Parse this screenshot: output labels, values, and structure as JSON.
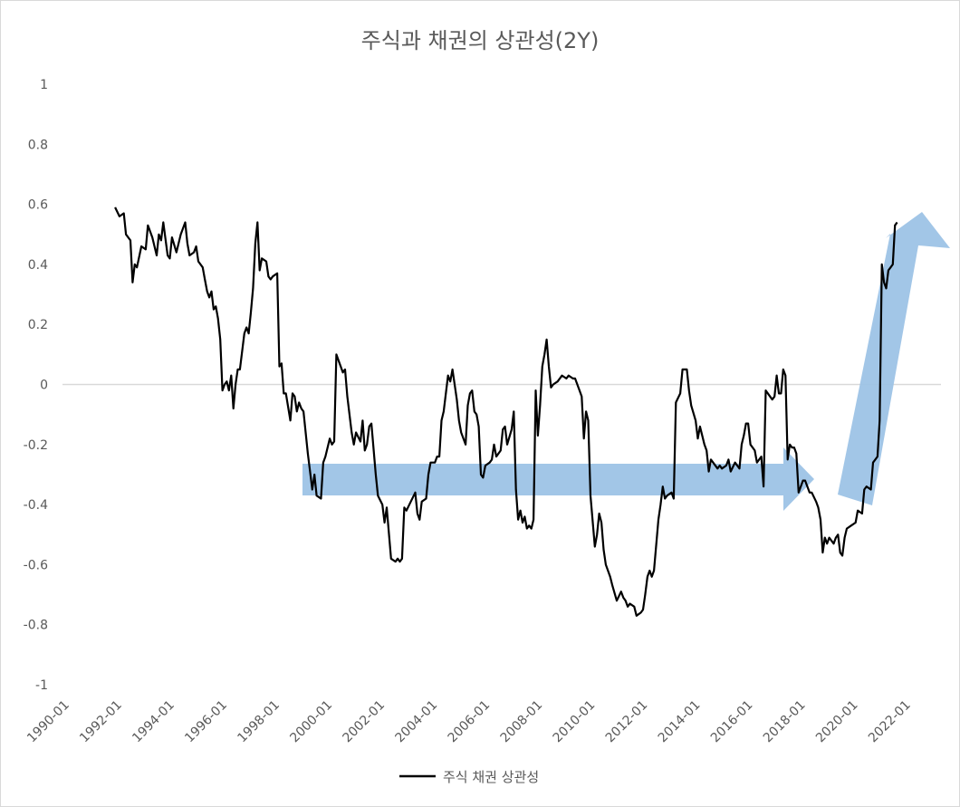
{
  "chart_data": {
    "type": "line",
    "title": "주식과 채권의 상관성(2Y)",
    "xlabel": "",
    "ylabel": "",
    "ylim": [
      -1,
      1
    ],
    "yticks": [
      "1",
      "0.8",
      "0.6",
      "0.4",
      "0.2",
      "0",
      "-0.2",
      "-0.4",
      "-0.6",
      "-0.8",
      "-1"
    ],
    "xticks": [
      "1990-01",
      "1992-01",
      "1994-01",
      "1996-01",
      "1998-01",
      "2000-01",
      "2002-01",
      "2004-01",
      "2006-01",
      "2008-01",
      "2010-01",
      "2012-01",
      "2014-01",
      "2016-01",
      "2018-01",
      "2020-01",
      "2022-01"
    ],
    "xlim": [
      "1990-01",
      "2023-06"
    ],
    "grid": false,
    "zero_line": true,
    "legend": "bottom",
    "colors": {
      "series": "#000000",
      "arrow": "#9dc3e6",
      "zero_line": "#d9d9d9",
      "text": "#595959"
    },
    "series": [
      {
        "name": "주식 채권 상관성",
        "points": [
          [
            "1992-01",
            0.59
          ],
          [
            "1992-03",
            0.56
          ],
          [
            "1992-05",
            0.57
          ],
          [
            "1992-06",
            0.5
          ],
          [
            "1992-08",
            0.48
          ],
          [
            "1992-09",
            0.34
          ],
          [
            "1992-10",
            0.4
          ],
          [
            "1992-11",
            0.39
          ],
          [
            "1993-01",
            0.46
          ],
          [
            "1993-03",
            0.45
          ],
          [
            "1993-04",
            0.53
          ],
          [
            "1993-06",
            0.49
          ],
          [
            "1993-08",
            0.43
          ],
          [
            "1993-09",
            0.5
          ],
          [
            "1993-10",
            0.48
          ],
          [
            "1993-11",
            0.54
          ],
          [
            "1994-01",
            0.43
          ],
          [
            "1994-02",
            0.42
          ],
          [
            "1994-03",
            0.49
          ],
          [
            "1994-05",
            0.44
          ],
          [
            "1994-07",
            0.5
          ],
          [
            "1994-09",
            0.54
          ],
          [
            "1994-10",
            0.47
          ],
          [
            "1994-11",
            0.43
          ],
          [
            "1995-01",
            0.44
          ],
          [
            "1995-02",
            0.46
          ],
          [
            "1995-03",
            0.41
          ],
          [
            "1995-05",
            0.39
          ],
          [
            "1995-06",
            0.35
          ],
          [
            "1995-07",
            0.31
          ],
          [
            "1995-08",
            0.29
          ],
          [
            "1995-09",
            0.31
          ],
          [
            "1995-10",
            0.25
          ],
          [
            "1995-11",
            0.26
          ],
          [
            "1995-12",
            0.22
          ],
          [
            "1996-01",
            0.15
          ],
          [
            "1996-02",
            -0.02
          ],
          [
            "1996-03",
            0.0
          ],
          [
            "1996-04",
            0.01
          ],
          [
            "1996-05",
            -0.02
          ],
          [
            "1996-06",
            0.03
          ],
          [
            "1996-07",
            -0.08
          ],
          [
            "1996-08",
            0.0
          ],
          [
            "1996-09",
            0.05
          ],
          [
            "1996-10",
            0.05
          ],
          [
            "1996-12",
            0.17
          ],
          [
            "1997-01",
            0.19
          ],
          [
            "1997-02",
            0.17
          ],
          [
            "1997-03",
            0.24
          ],
          [
            "1997-04",
            0.32
          ],
          [
            "1997-05",
            0.47
          ],
          [
            "1997-06",
            0.54
          ],
          [
            "1997-07",
            0.38
          ],
          [
            "1997-08",
            0.42
          ],
          [
            "1997-10",
            0.41
          ],
          [
            "1997-11",
            0.36
          ],
          [
            "1997-12",
            0.35
          ],
          [
            "1998-01",
            0.36
          ],
          [
            "1998-03",
            0.37
          ],
          [
            "1998-04",
            0.06
          ],
          [
            "1998-05",
            0.07
          ],
          [
            "1998-06",
            -0.03
          ],
          [
            "1998-07",
            -0.03
          ],
          [
            "1998-09",
            -0.12
          ],
          [
            "1998-10",
            -0.03
          ],
          [
            "1998-11",
            -0.04
          ],
          [
            "1998-12",
            -0.09
          ],
          [
            "1999-01",
            -0.06
          ],
          [
            "1999-02",
            -0.08
          ],
          [
            "1999-03",
            -0.09
          ],
          [
            "1999-05",
            -0.23
          ],
          [
            "1999-07",
            -0.35
          ],
          [
            "1999-08",
            -0.3
          ],
          [
            "1999-09",
            -0.37
          ],
          [
            "1999-11",
            -0.38
          ],
          [
            "1999-12",
            -0.26
          ],
          [
            "2000-01",
            -0.24
          ],
          [
            "2000-03",
            -0.18
          ],
          [
            "2000-04",
            -0.2
          ],
          [
            "2000-05",
            -0.19
          ],
          [
            "2000-06",
            0.1
          ],
          [
            "2000-07",
            0.08
          ],
          [
            "2000-09",
            0.04
          ],
          [
            "2000-10",
            0.05
          ],
          [
            "2000-11",
            -0.04
          ],
          [
            "2001-01",
            -0.16
          ],
          [
            "2001-02",
            -0.2
          ],
          [
            "2001-03",
            -0.16
          ],
          [
            "2001-05",
            -0.19
          ],
          [
            "2001-06",
            -0.12
          ],
          [
            "2001-07",
            -0.22
          ],
          [
            "2001-08",
            -0.2
          ],
          [
            "2001-09",
            -0.14
          ],
          [
            "2001-10",
            -0.13
          ],
          [
            "2001-12",
            -0.3
          ],
          [
            "2002-01",
            -0.37
          ],
          [
            "2002-03",
            -0.4
          ],
          [
            "2002-04",
            -0.46
          ],
          [
            "2002-05",
            -0.41
          ],
          [
            "2002-07",
            -0.58
          ],
          [
            "2002-09",
            -0.59
          ],
          [
            "2002-10",
            -0.58
          ],
          [
            "2002-11",
            -0.59
          ],
          [
            "2002-12",
            -0.58
          ],
          [
            "2003-01",
            -0.41
          ],
          [
            "2003-02",
            -0.42
          ],
          [
            "2003-04",
            -0.39
          ],
          [
            "2003-06",
            -0.36
          ],
          [
            "2003-07",
            -0.43
          ],
          [
            "2003-08",
            -0.45
          ],
          [
            "2003-09",
            -0.39
          ],
          [
            "2003-11",
            -0.38
          ],
          [
            "2003-12",
            -0.3
          ],
          [
            "2004-01",
            -0.26
          ],
          [
            "2004-03",
            -0.26
          ],
          [
            "2004-04",
            -0.24
          ],
          [
            "2004-05",
            -0.24
          ],
          [
            "2004-06",
            -0.12
          ],
          [
            "2004-07",
            -0.09
          ],
          [
            "2004-09",
            0.03
          ],
          [
            "2004-10",
            0.01
          ],
          [
            "2004-11",
            0.05
          ],
          [
            "2004-12",
            0.0
          ],
          [
            "2005-01",
            -0.05
          ],
          [
            "2005-02",
            -0.12
          ],
          [
            "2005-03",
            -0.16
          ],
          [
            "2005-05",
            -0.2
          ],
          [
            "2005-06",
            -0.07
          ],
          [
            "2005-07",
            -0.03
          ],
          [
            "2005-08",
            -0.02
          ],
          [
            "2005-09",
            -0.09
          ],
          [
            "2005-10",
            -0.1
          ],
          [
            "2005-11",
            -0.14
          ],
          [
            "2005-12",
            -0.3
          ],
          [
            "2006-01",
            -0.31
          ],
          [
            "2006-02",
            -0.27
          ],
          [
            "2006-04",
            -0.26
          ],
          [
            "2006-05",
            -0.25
          ],
          [
            "2006-06",
            -0.2
          ],
          [
            "2006-07",
            -0.24
          ],
          [
            "2006-09",
            -0.22
          ],
          [
            "2006-10",
            -0.15
          ],
          [
            "2006-11",
            -0.14
          ],
          [
            "2006-12",
            -0.2
          ],
          [
            "2007-02",
            -0.15
          ],
          [
            "2007-03",
            -0.09
          ],
          [
            "2007-04",
            -0.35
          ],
          [
            "2007-05",
            -0.45
          ],
          [
            "2007-06",
            -0.42
          ],
          [
            "2007-07",
            -0.46
          ],
          [
            "2007-08",
            -0.44
          ],
          [
            "2007-09",
            -0.48
          ],
          [
            "2007-10",
            -0.47
          ],
          [
            "2007-11",
            -0.48
          ],
          [
            "2007-12",
            -0.45
          ],
          [
            "2008-01",
            -0.02
          ],
          [
            "2008-02",
            -0.17
          ],
          [
            "2008-03",
            -0.07
          ],
          [
            "2008-04",
            0.06
          ],
          [
            "2008-05",
            0.1
          ],
          [
            "2008-06",
            0.15
          ],
          [
            "2008-07",
            0.06
          ],
          [
            "2008-08",
            -0.01
          ],
          [
            "2008-09",
            0.0
          ],
          [
            "2008-11",
            0.01
          ],
          [
            "2009-01",
            0.03
          ],
          [
            "2009-03",
            0.02
          ],
          [
            "2009-04",
            0.03
          ],
          [
            "2009-06",
            0.02
          ],
          [
            "2009-07",
            0.02
          ],
          [
            "2009-09",
            -0.02
          ],
          [
            "2009-10",
            -0.04
          ],
          [
            "2009-11",
            -0.18
          ],
          [
            "2009-12",
            -0.09
          ],
          [
            "2010-01",
            -0.12
          ],
          [
            "2010-02",
            -0.37
          ],
          [
            "2010-04",
            -0.54
          ],
          [
            "2010-05",
            -0.5
          ],
          [
            "2010-06",
            -0.43
          ],
          [
            "2010-07",
            -0.46
          ],
          [
            "2010-08",
            -0.55
          ],
          [
            "2010-09",
            -0.6
          ],
          [
            "2010-11",
            -0.64
          ],
          [
            "2010-12",
            -0.67
          ],
          [
            "2011-02",
            -0.72
          ],
          [
            "2011-04",
            -0.69
          ],
          [
            "2011-05",
            -0.71
          ],
          [
            "2011-06",
            -0.72
          ],
          [
            "2011-07",
            -0.74
          ],
          [
            "2011-08",
            -0.73
          ],
          [
            "2011-10",
            -0.74
          ],
          [
            "2011-11",
            -0.77
          ],
          [
            "2012-01",
            -0.76
          ],
          [
            "2012-02",
            -0.75
          ],
          [
            "2012-03",
            -0.7
          ],
          [
            "2012-04",
            -0.64
          ],
          [
            "2012-05",
            -0.62
          ],
          [
            "2012-06",
            -0.64
          ],
          [
            "2012-07",
            -0.62
          ],
          [
            "2012-09",
            -0.45
          ],
          [
            "2012-10",
            -0.4
          ],
          [
            "2012-11",
            -0.34
          ],
          [
            "2012-12",
            -0.38
          ],
          [
            "2013-01",
            -0.37
          ],
          [
            "2013-03",
            -0.36
          ],
          [
            "2013-04",
            -0.38
          ],
          [
            "2013-05",
            -0.06
          ],
          [
            "2013-07",
            -0.03
          ],
          [
            "2013-08",
            0.05
          ],
          [
            "2013-10",
            0.05
          ],
          [
            "2013-11",
            -0.02
          ],
          [
            "2013-12",
            -0.07
          ],
          [
            "2014-02",
            -0.12
          ],
          [
            "2014-03",
            -0.18
          ],
          [
            "2014-04",
            -0.14
          ],
          [
            "2014-06",
            -0.2
          ],
          [
            "2014-07",
            -0.22
          ],
          [
            "2014-08",
            -0.29
          ],
          [
            "2014-09",
            -0.25
          ],
          [
            "2014-10",
            -0.26
          ],
          [
            "2014-12",
            -0.28
          ],
          [
            "2015-01",
            -0.27
          ],
          [
            "2015-02",
            -0.28
          ],
          [
            "2015-04",
            -0.27
          ],
          [
            "2015-05",
            -0.25
          ],
          [
            "2015-06",
            -0.29
          ],
          [
            "2015-08",
            -0.26
          ],
          [
            "2015-10",
            -0.28
          ],
          [
            "2015-11",
            -0.2
          ],
          [
            "2015-12",
            -0.17
          ],
          [
            "2016-01",
            -0.13
          ],
          [
            "2016-02",
            -0.13
          ],
          [
            "2016-03",
            -0.2
          ],
          [
            "2016-05",
            -0.22
          ],
          [
            "2016-06",
            -0.26
          ],
          [
            "2016-08",
            -0.24
          ],
          [
            "2016-09",
            -0.34
          ],
          [
            "2016-10",
            -0.02
          ],
          [
            "2016-12",
            -0.04
          ],
          [
            "2017-01",
            -0.05
          ],
          [
            "2017-02",
            -0.04
          ],
          [
            "2017-03",
            0.03
          ],
          [
            "2017-04",
            -0.03
          ],
          [
            "2017-05",
            -0.03
          ],
          [
            "2017-06",
            0.05
          ],
          [
            "2017-07",
            0.03
          ],
          [
            "2017-08",
            -0.25
          ],
          [
            "2017-09",
            -0.2
          ],
          [
            "2017-10",
            -0.21
          ],
          [
            "2017-11",
            -0.21
          ],
          [
            "2017-12",
            -0.23
          ],
          [
            "2018-01",
            -0.36
          ],
          [
            "2018-03",
            -0.32
          ],
          [
            "2018-04",
            -0.32
          ],
          [
            "2018-06",
            -0.36
          ],
          [
            "2018-07",
            -0.36
          ],
          [
            "2018-09",
            -0.39
          ],
          [
            "2018-10",
            -0.41
          ],
          [
            "2018-11",
            -0.45
          ],
          [
            "2018-12",
            -0.56
          ],
          [
            "2019-01",
            -0.51
          ],
          [
            "2019-02",
            -0.53
          ],
          [
            "2019-03",
            -0.51
          ],
          [
            "2019-05",
            -0.53
          ],
          [
            "2019-06",
            -0.51
          ],
          [
            "2019-07",
            -0.5
          ],
          [
            "2019-08",
            -0.56
          ],
          [
            "2019-09",
            -0.57
          ],
          [
            "2019-10",
            -0.51
          ],
          [
            "2019-11",
            -0.48
          ],
          [
            "2020-01",
            -0.47
          ],
          [
            "2020-03",
            -0.46
          ],
          [
            "2020-04",
            -0.42
          ],
          [
            "2020-06",
            -0.43
          ],
          [
            "2020-07",
            -0.35
          ],
          [
            "2020-08",
            -0.34
          ],
          [
            "2020-10",
            -0.35
          ],
          [
            "2020-11",
            -0.26
          ],
          [
            "2021-01",
            -0.24
          ],
          [
            "2021-02",
            -0.12
          ],
          [
            "2021-03",
            0.4
          ],
          [
            "2021-04",
            0.34
          ],
          [
            "2021-05",
            0.32
          ],
          [
            "2021-06",
            0.38
          ],
          [
            "2021-07",
            0.39
          ],
          [
            "2021-08",
            0.4
          ],
          [
            "2021-09",
            0.53
          ],
          [
            "2021-10",
            0.54
          ]
        ]
      }
    ]
  }
}
